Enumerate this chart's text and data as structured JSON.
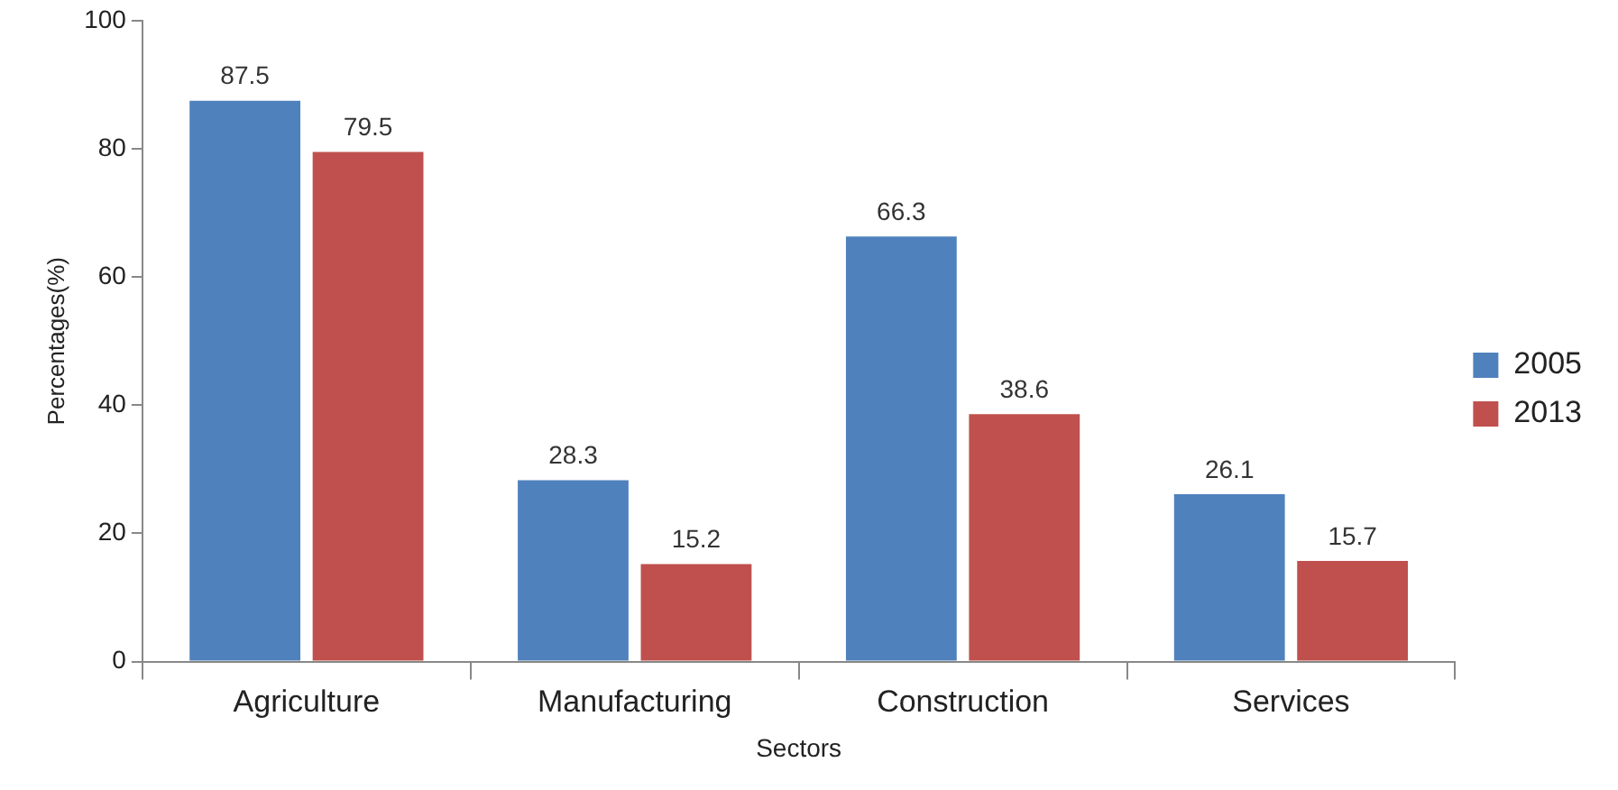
{
  "chart_data": {
    "type": "bar",
    "xlabel": "Sectors",
    "ylabel": "Percentages(%)",
    "categories": [
      "Agriculture",
      "Manufacturing",
      "Construction",
      "Services"
    ],
    "series": [
      {
        "name": "2005",
        "color": "#4f81bd",
        "values": [
          87.5,
          28.3,
          66.3,
          26.1
        ]
      },
      {
        "name": "2013",
        "color": "#c0504d",
        "values": [
          79.5,
          15.2,
          38.6,
          15.7
        ]
      }
    ],
    "ylim": [
      0,
      100
    ],
    "yticks": [
      0,
      20,
      40,
      60,
      80,
      100
    ],
    "grid": false,
    "legend": "right",
    "data_labels": true
  }
}
